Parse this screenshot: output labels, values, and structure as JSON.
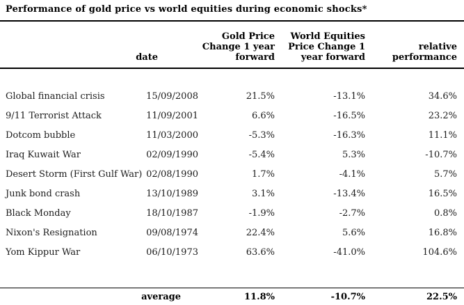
{
  "chart_data": {
    "type": "table",
    "title": "Performance of gold price vs world equities during economic shocks*",
    "columns": [
      "",
      "date",
      "Gold Price Change 1 year forward",
      "World Equities Price Change 1 year forward",
      "relative performance"
    ],
    "rows": [
      {
        "event": "Global financial crisis",
        "date": "15/09/2008",
        "gold": "21.5%",
        "equities": "-13.1%",
        "relative": "34.6%"
      },
      {
        "event": "9/11 Terrorist Attack",
        "date": "11/09/2001",
        "gold": "6.6%",
        "equities": "-16.5%",
        "relative": "23.2%"
      },
      {
        "event": "Dotcom bubble",
        "date": "11/03/2000",
        "gold": "-5.3%",
        "equities": "-16.3%",
        "relative": "11.1%"
      },
      {
        "event": "Iraq Kuwait War",
        "date": "02/09/1990",
        "gold": "-5.4%",
        "equities": "5.3%",
        "relative": "-10.7%"
      },
      {
        "event": "Desert Storm (First Gulf War)",
        "date": "02/08/1990",
        "gold": "1.7%",
        "equities": "-4.1%",
        "relative": "5.7%"
      },
      {
        "event": "Junk bond crash",
        "date": "13/10/1989",
        "gold": "3.1%",
        "equities": "-13.4%",
        "relative": "16.5%"
      },
      {
        "event": "Black Monday",
        "date": "18/10/1987",
        "gold": "-1.9%",
        "equities": "-2.7%",
        "relative": "0.8%"
      },
      {
        "event": "Nixon's Resignation",
        "date": "09/08/1974",
        "gold": "22.4%",
        "equities": "5.6%",
        "relative": "16.8%"
      },
      {
        "event": "Yom Kippur War",
        "date": "06/10/1973",
        "gold": "63.6%",
        "equities": "-41.0%",
        "relative": "104.6%"
      }
    ],
    "average": {
      "label": "average",
      "gold": "11.8%",
      "equities": "-10.7%",
      "relative": "22.5%"
    }
  },
  "header_lines": {
    "date": "date",
    "gold": "Gold Price\nChange 1 year\nforward",
    "equities": "World Equities\nPrice Change 1\nyear forward",
    "relative": "relative\nperformance"
  }
}
